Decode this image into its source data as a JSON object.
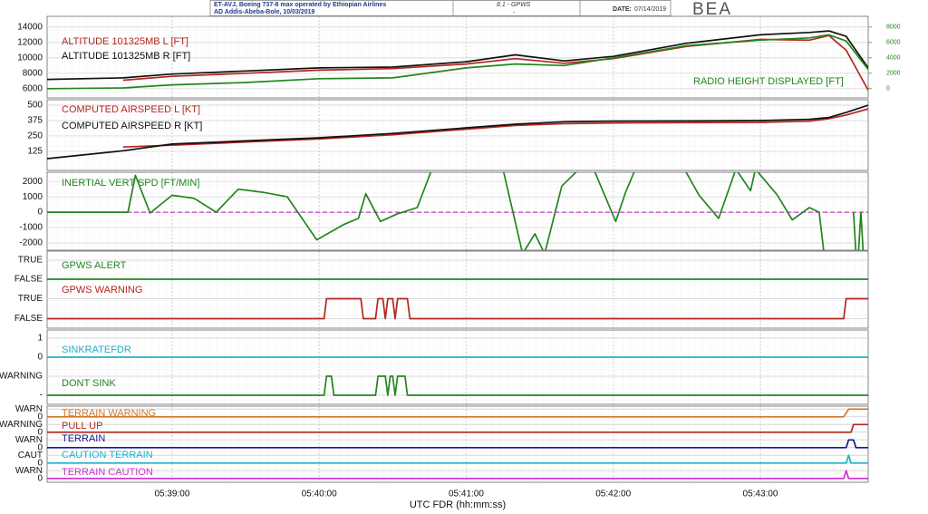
{
  "header": {
    "title": "ET-AVJ, Boeing 737-8 max operated by Ethiopian Airlines",
    "subtitle": "AD Addis-Abeba-Bole, 10/03/2019",
    "section": "8.1 - GPWS",
    "section_note": "-",
    "date_label": "DATE:",
    "date": "07/14/2019",
    "logo": "BEA"
  },
  "chart_data": [
    {
      "type": "line",
      "xlim": [
        "05:38:09",
        "05:43:44"
      ],
      "ylim": [
        4800,
        15400
      ],
      "yticks": [
        14000,
        12000,
        10000,
        8000,
        6000
      ],
      "y2lim": [
        -1200,
        9400
      ],
      "y2ticks": [
        8000,
        6000,
        4000,
        2000,
        0
      ],
      "grid": true,
      "series": [
        {
          "name": "ALTITUDE 101325MB L [FT]",
          "color": "#b3261e",
          "x": [
            "05:38:09",
            "05:38:40",
            "05:39:00",
            "05:39:30",
            "05:40:00",
            "05:40:30",
            "05:41:00",
            "05:41:20",
            "05:41:40",
            "05:42:00",
            "05:42:30",
            "05:43:00",
            "05:43:20",
            "05:43:28",
            "05:43:35",
            "05:43:44"
          ],
          "values": [
            null,
            7100,
            7600,
            8000,
            8400,
            8600,
            9200,
            9900,
            9300,
            9900,
            11500,
            12400,
            12300,
            12900,
            11000,
            5800
          ]
        },
        {
          "name": "ALTITUDE 101325MB R [FT]",
          "color": "#111111",
          "x": [
            "05:38:09",
            "05:38:40",
            "05:39:00",
            "05:39:30",
            "05:40:00",
            "05:40:30",
            "05:41:00",
            "05:41:20",
            "05:41:40",
            "05:42:00",
            "05:42:30",
            "05:43:00",
            "05:43:20",
            "05:43:28",
            "05:43:35",
            "05:43:44"
          ],
          "values": [
            7200,
            7400,
            7900,
            8300,
            8700,
            8800,
            9500,
            10400,
            9600,
            10200,
            11900,
            13000,
            13300,
            13500,
            12800,
            8700
          ]
        },
        {
          "name": "RADIO HEIGHT DISPLAYED [FT]",
          "color": "#22861e",
          "axis": "y2",
          "x": [
            "05:38:09",
            "05:38:40",
            "05:39:00",
            "05:39:30",
            "05:40:00",
            "05:40:30",
            "05:41:00",
            "05:41:20",
            "05:41:40",
            "05:42:00",
            "05:42:30",
            "05:43:00",
            "05:43:20",
            "05:43:28",
            "05:43:35",
            "05:43:44"
          ],
          "values": [
            0,
            100,
            500,
            800,
            1300,
            1400,
            2700,
            3200,
            3000,
            4000,
            5600,
            6300,
            6600,
            7000,
            6200,
            2500
          ]
        }
      ]
    },
    {
      "type": "line",
      "xlim": [
        "05:38:09",
        "05:43:44"
      ],
      "ylim": [
        -30,
        544
      ],
      "yticks": [
        500,
        375,
        250,
        125
      ],
      "grid": true,
      "series": [
        {
          "name": "COMPUTED AIRSPEED L [KT]",
          "color": "#b3261e",
          "x": [
            "05:38:09",
            "05:38:40",
            "05:39:00",
            "05:39:30",
            "05:40:00",
            "05:40:30",
            "05:41:00",
            "05:41:20",
            "05:41:40",
            "05:42:00",
            "05:42:30",
            "05:43:00",
            "05:43:20",
            "05:43:28",
            "05:43:35",
            "05:43:44"
          ],
          "values": [
            null,
            160,
            175,
            200,
            225,
            260,
            305,
            335,
            350,
            355,
            358,
            360,
            370,
            390,
            420,
            470
          ]
        },
        {
          "name": "COMPUTED AIRSPEED R [KT]",
          "color": "#111111",
          "x": [
            "05:38:09",
            "05:38:40",
            "05:39:00",
            "05:39:30",
            "05:40:00",
            "05:40:30",
            "05:41:00",
            "05:41:20",
            "05:41:40",
            "05:42:00",
            "05:42:30",
            "05:43:00",
            "05:43:20",
            "05:43:28",
            "05:43:35",
            "05:43:44"
          ],
          "values": [
            66,
            130,
            184,
            210,
            235,
            270,
            316,
            345,
            365,
            370,
            372,
            375,
            385,
            400,
            440,
            500
          ]
        }
      ]
    },
    {
      "type": "line",
      "xlim": [
        "05:38:09",
        "05:43:44"
      ],
      "ylim": [
        -2470,
        2600
      ],
      "yticks": [
        2000,
        1000,
        0,
        -1000,
        -2000
      ],
      "grid": true,
      "zero_line": {
        "value": 0,
        "color": "#cc33cc"
      },
      "series": [
        {
          "name": "INERTIAL VERT SPD [FT/MIN]",
          "color": "#22861e",
          "x": [
            "05:38:09",
            "05:38:42",
            "05:38:45",
            "05:38:51",
            "05:39:00",
            "05:39:09",
            "05:39:18",
            "05:39:27",
            "05:39:37",
            "05:39:47",
            "05:39:59",
            "05:40:10",
            "05:40:16",
            "05:40:19",
            "05:40:25",
            "05:40:32",
            "05:40:40",
            "05:40:46",
            "05:41:15",
            "05:41:23",
            "05:41:28",
            "05:41:32",
            "05:41:39",
            "05:41:46",
            "05:41:52",
            "05:42:01",
            "05:42:05",
            "05:42:09",
            "05:42:29",
            "05:42:35",
            "05:42:43",
            "05:42:50",
            "05:42:56",
            "05:42:58",
            "05:43:07",
            "05:43:13",
            "05:43:20",
            "05:43:24",
            "05:43:26",
            "05:43:30",
            "05:43:38",
            "05:43:39",
            "05:43:40",
            "05:43:41",
            "05:43:42",
            "05:43:43"
          ],
          "values": [
            0,
            0,
            2400,
            -50,
            1100,
            900,
            0,
            1500,
            1300,
            1000,
            -1800,
            -800,
            -400,
            1200,
            -600,
            -100,
            300,
            2800,
            2800,
            -2700,
            -1400,
            -2700,
            1700,
            2800,
            2800,
            -600,
            1300,
            2800,
            2800,
            1100,
            -400,
            2800,
            1400,
            2800,
            1100,
            -500,
            300,
            0,
            -2700,
            null,
            0,
            -2700,
            -2700,
            0,
            -2700,
            -2700
          ]
        }
      ]
    },
    {
      "type": "line",
      "xlim": [
        "05:38:09",
        "05:43:44"
      ],
      "ylim": [
        -0.5,
        1.5
      ],
      "yticks": [
        {
          "value": 1,
          "label": "TRUE"
        },
        {
          "value": 0,
          "label": "FALSE"
        }
      ],
      "grid": true,
      "series": [
        {
          "name": "GPWS ALERT",
          "color": "#22861e",
          "x": [
            "05:38:09",
            "05:43:44"
          ],
          "values": [
            0,
            0
          ]
        }
      ]
    },
    {
      "type": "line",
      "xlim": [
        "05:38:09",
        "05:43:44"
      ],
      "ylim": [
        -0.5,
        1.5
      ],
      "yticks": [
        {
          "value": 1,
          "label": "TRUE"
        },
        {
          "value": 0,
          "label": "FALSE"
        }
      ],
      "grid": true,
      "series": [
        {
          "name": "GPWS WARNING",
          "color": "#b3261e",
          "x": [
            "05:38:09",
            "05:40:02",
            "05:40:03",
            "05:40:17",
            "05:40:18",
            "05:40:23",
            "05:40:24",
            "05:40:26",
            "05:40:27",
            "05:40:28",
            "05:40:30",
            "05:40:31",
            "05:40:32",
            "05:40:36",
            "05:40:37",
            "05:43:34",
            "05:43:35",
            "05:43:44"
          ],
          "values": [
            0,
            0,
            1,
            1,
            0,
            0,
            1,
            1,
            0,
            1,
            1,
            0,
            1,
            1,
            0,
            0,
            1,
            1
          ]
        }
      ]
    },
    {
      "type": "line",
      "xlim": [
        "05:38:09",
        "05:43:44"
      ],
      "ylim": [
        -0.5,
        1.5
      ],
      "yticks": [
        1,
        0
      ],
      "grid": true,
      "series": [
        {
          "name": "SINKRATEFDR",
          "color": "#1fb0c4",
          "x": [
            "05:38:09",
            "05:43:44"
          ],
          "values": [
            0,
            0
          ]
        }
      ]
    },
    {
      "type": "line",
      "xlim": [
        "05:38:09",
        "05:43:44"
      ],
      "ylim": [
        -0.5,
        1.5
      ],
      "yticks": [
        {
          "value": 1,
          "label": "WARNING"
        },
        {
          "value": 0,
          "label": "-"
        }
      ],
      "grid": true,
      "series": [
        {
          "name": "DONT SINK",
          "color": "#22861e",
          "x": [
            "05:38:09",
            "05:40:02",
            "05:40:03",
            "05:40:05",
            "05:40:06",
            "05:40:23",
            "05:40:24",
            "05:40:27",
            "05:40:28",
            "05:40:29",
            "05:40:30",
            "05:40:31",
            "05:40:32",
            "05:40:35",
            "05:40:36",
            "05:43:44"
          ],
          "values": [
            0,
            0,
            1,
            1,
            0,
            0,
            1,
            1,
            0,
            1,
            1,
            0,
            1,
            1,
            0,
            0
          ]
        }
      ]
    },
    {
      "type": "line",
      "xlim": [
        "05:38:09",
        "05:43:44"
      ],
      "ylim": [
        -0.5,
        1.5
      ],
      "yticks": [
        {
          "value": 1,
          "label": "WARN"
        },
        0
      ],
      "grid": true,
      "series": [
        {
          "name": "TERRAIN WARNING",
          "color": "#d2782d",
          "x": [
            "05:38:09",
            "05:43:34",
            "05:43:36",
            "05:43:44"
          ],
          "values": [
            0,
            0,
            1,
            1
          ]
        }
      ]
    },
    {
      "type": "line",
      "xlim": [
        "05:38:09",
        "05:43:44"
      ],
      "ylim": [
        -0.5,
        1.5
      ],
      "yticks": [
        {
          "value": 1,
          "label": "WARNING"
        },
        0
      ],
      "grid": true,
      "series": [
        {
          "name": "PULL UP",
          "color": "#b3261e",
          "x": [
            "05:38:09",
            "05:43:37",
            "05:43:38",
            "05:43:44"
          ],
          "values": [
            0,
            0,
            1,
            1
          ]
        }
      ]
    },
    {
      "type": "line",
      "xlim": [
        "05:38:09",
        "05:43:44"
      ],
      "ylim": [
        -0.5,
        1.5
      ],
      "yticks": [
        {
          "value": 1,
          "label": "WARN"
        },
        0
      ],
      "grid": true,
      "series": [
        {
          "name": "TERRAIN",
          "color": "#1a1a8c",
          "x": [
            "05:38:09",
            "05:43:35",
            "05:43:36",
            "05:43:38",
            "05:43:39",
            "05:43:44"
          ],
          "values": [
            0,
            0,
            1,
            1,
            0,
            0
          ]
        }
      ]
    },
    {
      "type": "line",
      "xlim": [
        "05:38:09",
        "05:43:44"
      ],
      "ylim": [
        -0.5,
        1.5
      ],
      "yticks": [
        {
          "value": 1,
          "label": "CAUT"
        },
        0
      ],
      "grid": true,
      "series": [
        {
          "name": "CAUTION TERRAIN",
          "color": "#1fb0c4",
          "x": [
            "05:38:09",
            "05:43:35",
            "05:43:36",
            "05:43:37",
            "05:43:44"
          ],
          "values": [
            0,
            0,
            1,
            0,
            0
          ]
        }
      ]
    },
    {
      "type": "line",
      "xlim": [
        "05:38:09",
        "05:43:44"
      ],
      "ylim": [
        -0.5,
        1.5
      ],
      "yticks": [
        {
          "value": 1,
          "label": "WARN"
        },
        0
      ],
      "grid": true,
      "xticks": [
        "05:39:00",
        "05:40:00",
        "05:41:00",
        "05:42:00",
        "05:43:00"
      ],
      "xlabel": "UTC FDR (hh:mm:ss)",
      "series": [
        {
          "name": "TERRAIN CAUTION",
          "color": "#cc33cc",
          "x": [
            "05:38:09",
            "05:43:34",
            "05:43:35",
            "05:43:36",
            "05:43:44"
          ],
          "values": [
            0,
            0,
            1,
            0,
            0
          ]
        }
      ]
    }
  ]
}
